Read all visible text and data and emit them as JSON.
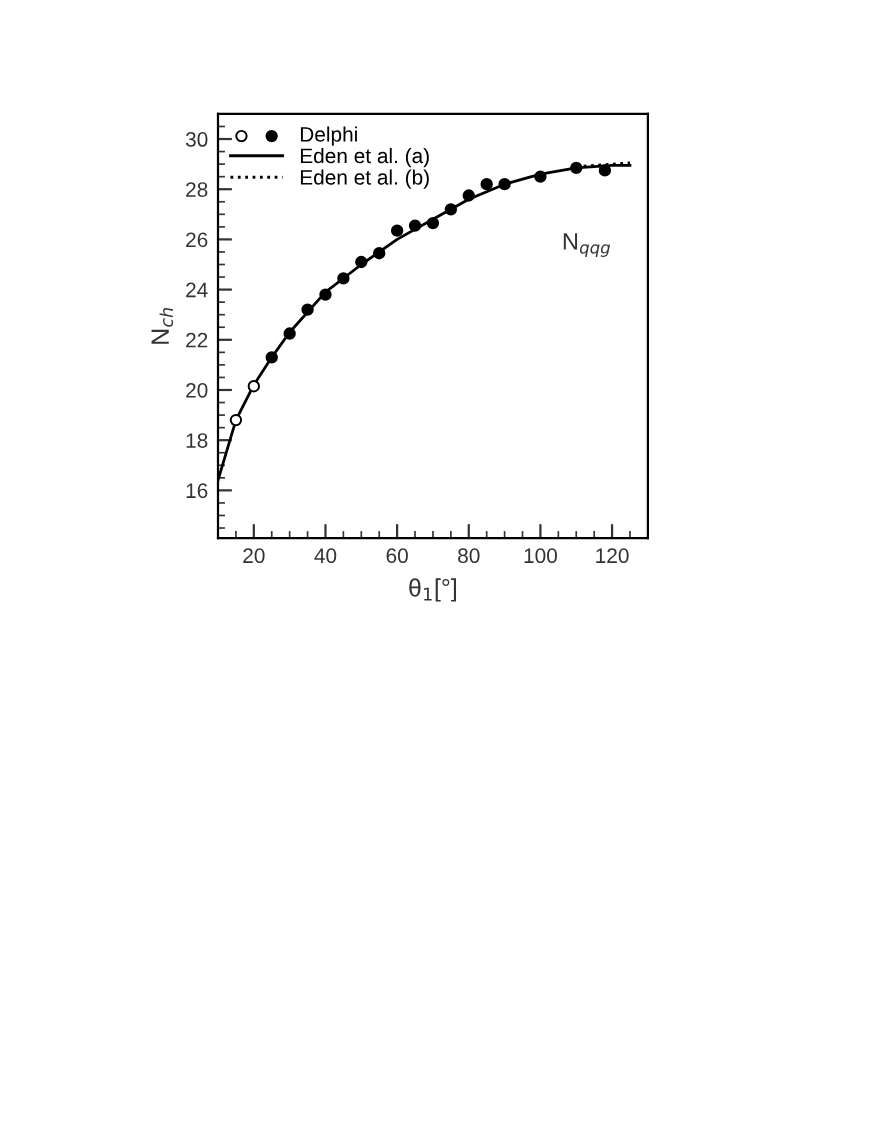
{
  "chart_data": {
    "type": "scatter",
    "xlabel": "θ$_{1}$[°]",
    "ylabel": "N$_{ch}$",
    "xlim": [
      10,
      130
    ],
    "ylim": [
      14.1,
      31
    ],
    "xticks": [
      20,
      40,
      60,
      80,
      100,
      120
    ],
    "yticks": [
      16,
      18,
      20,
      22,
      24,
      26,
      28,
      30
    ],
    "legend": "top left",
    "grid": false,
    "annotations": [
      "N$_{qqg}$"
    ],
    "series": [
      {
        "marker": "circle",
        "color": "#ffffff",
        "x": [
          15,
          20
        ],
        "values": [
          18.8,
          20.15
        ]
      },
      {
        "name": "Delphi",
        "marker": "circle",
        "color": "#000000",
        "x": [
          25,
          30,
          35,
          40,
          45,
          50,
          55,
          60,
          65,
          70,
          75,
          80,
          85,
          90,
          100,
          110,
          118
        ],
        "values": [
          21.3,
          22.25,
          23.2,
          23.8,
          24.45,
          25.1,
          25.45,
          26.35,
          26.55,
          26.65,
          27.2,
          27.75,
          28.2,
          28.2,
          28.5,
          28.85,
          28.75
        ]
      },
      {
        "name": "Eden et al. (a)",
        "type": "line",
        "line_style": "solid",
        "color": "#000000",
        "x": [
          10,
          15,
          20,
          25,
          30,
          40,
          50,
          60,
          70,
          80,
          90,
          100,
          110,
          120,
          125
        ],
        "values": [
          16.4,
          18.8,
          20.2,
          21.3,
          22.3,
          23.9,
          25.0,
          26.0,
          26.8,
          27.6,
          28.2,
          28.6,
          28.85,
          28.95,
          28.95
        ]
      },
      {
        "name": "Eden et al. (b)",
        "type": "line",
        "line_style": "dotted",
        "color": "#000000",
        "x": [
          110,
          125
        ],
        "values": [
          28.9,
          29.05
        ]
      }
    ]
  }
}
